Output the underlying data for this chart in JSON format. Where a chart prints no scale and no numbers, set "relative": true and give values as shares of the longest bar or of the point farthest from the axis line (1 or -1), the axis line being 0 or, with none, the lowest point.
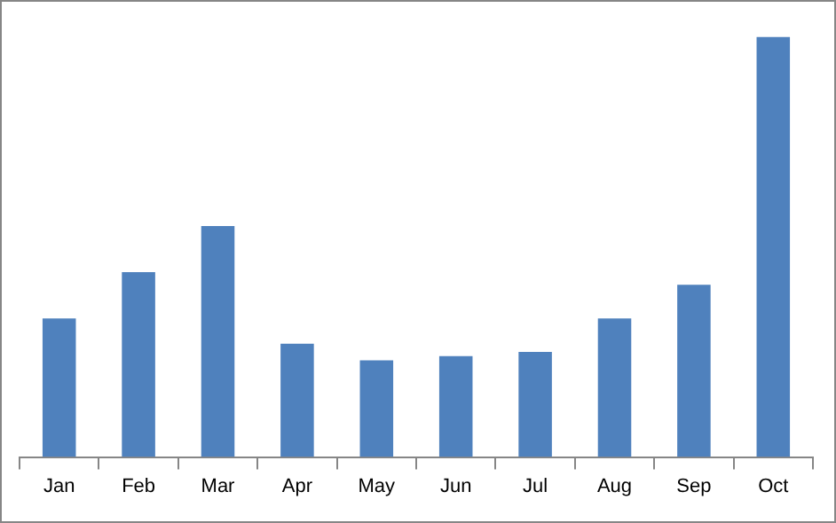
{
  "chart_data": {
    "type": "bar",
    "relative": true,
    "color": "#4f81bd",
    "categories": [
      "Jan",
      "Feb",
      "Mar",
      "Apr",
      "May",
      "Jun",
      "Jul",
      "Aug",
      "Sep",
      "Oct"
    ],
    "values": [
      0.33,
      0.44,
      0.55,
      0.27,
      0.23,
      0.24,
      0.25,
      0.33,
      0.41,
      1
    ]
  }
}
